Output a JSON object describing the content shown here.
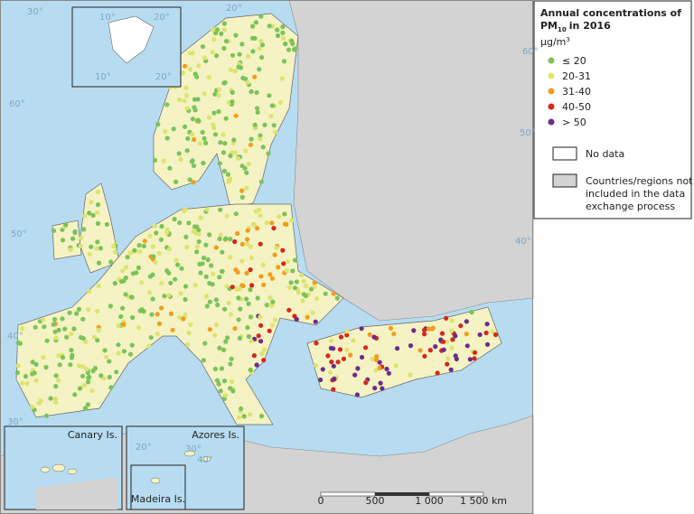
{
  "legend": {
    "title_line1": "Annual concentrations of",
    "title_pm": "PM",
    "title_sub": "10",
    "title_year": "in 2016",
    "unit": "µg/m",
    "unit_sup": "3",
    "classes": [
      {
        "label": "≤ 20",
        "color": "#7ac35a"
      },
      {
        "label": "20-31",
        "color": "#dde46e"
      },
      {
        "label": "31-40",
        "color": "#f39c1e"
      },
      {
        "label": "40-50",
        "color": "#d7261e"
      },
      {
        "label": "> 50",
        "color": "#6a2c8c"
      }
    ],
    "no_data": "No data",
    "not_included": [
      "Countries/regions not",
      "included in the data",
      "exchange process"
    ]
  },
  "insets": [
    "Canary Is.",
    "Azores Is.",
    "Madeira Is."
  ],
  "scale_bar": [
    "0",
    "500",
    "1 000",
    "1 500 km"
  ],
  "graticule": [
    "30°",
    "10°",
    "20°",
    "10°",
    "20°",
    "60°",
    "50°",
    "40°",
    "30°",
    "40°",
    "50°",
    "60°",
    "20°",
    "20°",
    "30°",
    "40°"
  ]
}
